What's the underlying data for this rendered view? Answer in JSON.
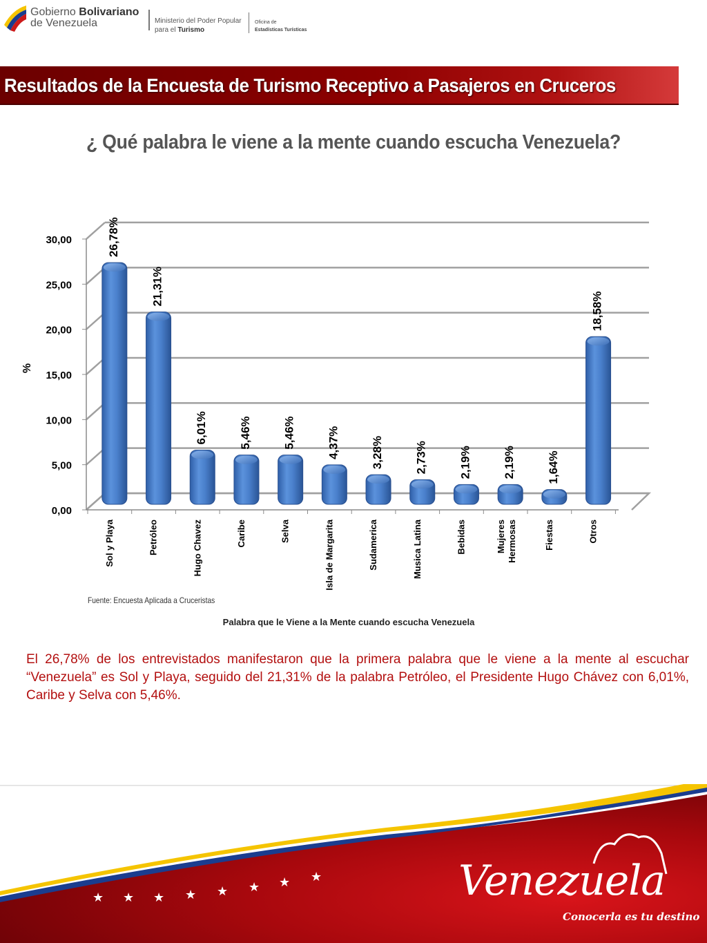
{
  "header": {
    "gov_line1_a": "Gobierno",
    "gov_line1_b": "Bolivariano",
    "gov_line2": "de Venezuela",
    "ministry_line1": "Ministerio del Poder Popular",
    "ministry_line2_a": "para el",
    "ministry_line2_b": "Turismo",
    "office_line1": "Oficina de",
    "office_line2": "Estadísticas Turísticas"
  },
  "banner_title": "Resultados de la Encuesta de Turismo Receptivo a Pasajeros en Cruceros",
  "question": "¿ Qué palabra le viene a la mente cuando escucha Venezuela?",
  "source_note": "Fuente: Encuesta Aplicada a Cruceristas",
  "chart_caption": "Palabra que le Viene a la Mente cuando escucha Venezuela",
  "paragraph": "El 26,78% de los entrevistados manifestaron que la primera palabra que le viene a la mente al escuchar “Venezuela” es Sol y Playa, seguido del 21,31% de la palabra Petróleo, el Presidente Hugo Chávez con 6,01%, Caribe y Selva con 5,46%.",
  "footer": {
    "brand": "Venezuela",
    "slogan": "Conocerla es tu destino"
  },
  "colors": {
    "banner": "#8c0000",
    "bar": "#4f86d3",
    "paragraph": "#b31010"
  },
  "chart_data": {
    "type": "bar",
    "title": "",
    "xlabel": "",
    "ylabel": "%",
    "ylim": [
      0,
      30
    ],
    "yticks": [
      "0,00",
      "5,00",
      "10,00",
      "15,00",
      "20,00",
      "25,00",
      "30,00"
    ],
    "grid": true,
    "categories": [
      "Sol y Playa",
      "Petróleo",
      "Hugo Chavez",
      "Caribe",
      "Selva",
      "Isla de Margarita",
      "Sudamerica",
      "Musica Latina",
      "Bebidas",
      "Mujeres Hermosas",
      "Fiestas",
      "Otros"
    ],
    "values": [
      26.78,
      21.31,
      6.01,
      5.46,
      5.46,
      4.37,
      3.28,
      2.73,
      2.19,
      2.19,
      1.64,
      18.58
    ],
    "data_labels": [
      "26,78%",
      "21,31%",
      "6,01%",
      "5,46%",
      "5,46%",
      "4,37%",
      "3,28%",
      "2,73%",
      "2,19%",
      "2,19%",
      "1,64%",
      "18,58%"
    ]
  }
}
